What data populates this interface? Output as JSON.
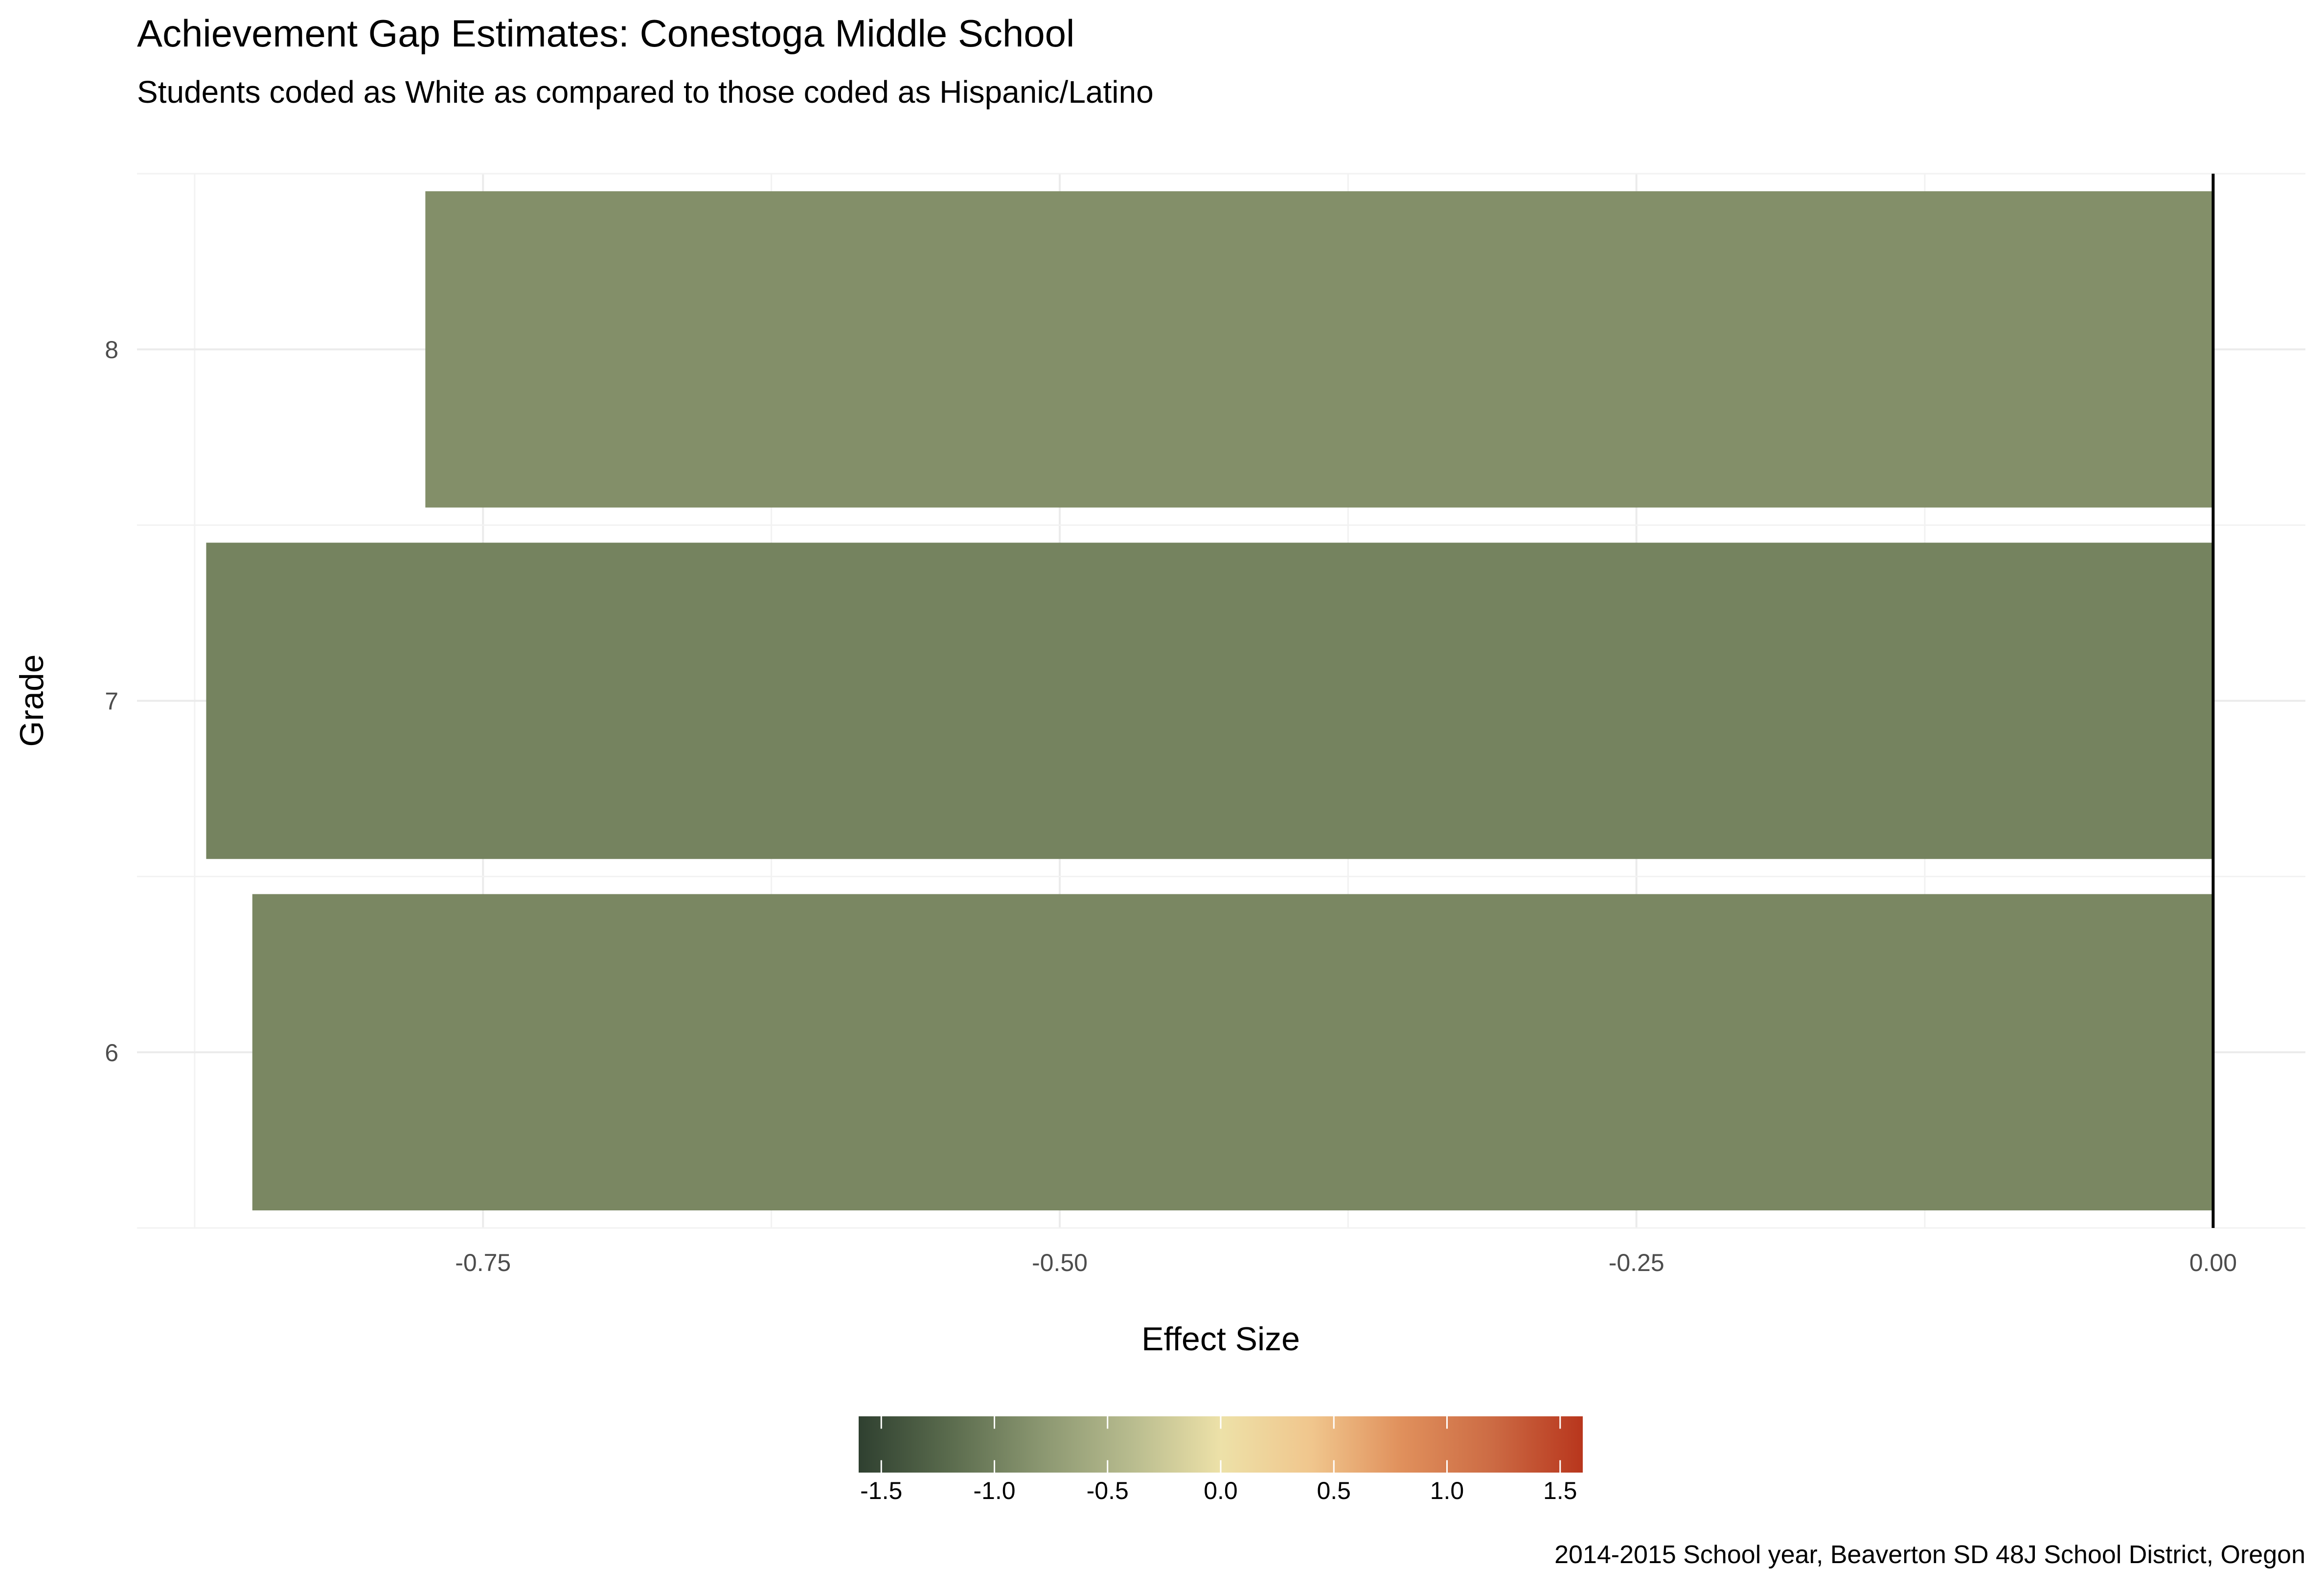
{
  "chart_data": {
    "type": "bar",
    "orientation": "horizontal",
    "title": "Achievement Gap Estimates: Conestoga Middle School",
    "subtitle": "Students coded as White as compared to those coded as Hispanic/Latino",
    "xlabel": "Effect Size",
    "ylabel": "Grade",
    "caption": "2014-2015 School year, Beaverton SD 48J School District, Oregon",
    "categories": [
      "6",
      "7",
      "8"
    ],
    "values": [
      -0.85,
      -0.87,
      -0.775
    ],
    "bar_colors": [
      "#7a8762",
      "#75835f",
      "#838f69"
    ],
    "xlim": [
      -0.9,
      0.04
    ],
    "x_ticks": [
      -0.75,
      -0.5,
      -0.25,
      0.0
    ],
    "x_tick_labels": [
      "-0.75",
      "-0.50",
      "-0.25",
      "0.00"
    ],
    "reference_line_x": 0.0,
    "grid": true,
    "legend": {
      "type": "colorbar",
      "placement": "bottom",
      "range": [
        -1.6,
        1.6
      ],
      "ticks": [
        -1.5,
        -1.0,
        -0.5,
        0.0,
        0.5,
        1.0,
        1.5
      ],
      "tick_labels": [
        "-1.5",
        "-1.0",
        "-0.5",
        "0.0",
        "0.5",
        "1.0",
        "1.5"
      ],
      "colors": [
        "#2f4030",
        "#5a6b4d",
        "#8a9670",
        "#b7bb8e",
        "#ede1a8",
        "#f0c68d",
        "#e0905c",
        "#cc6b44",
        "#b8361d"
      ]
    }
  }
}
